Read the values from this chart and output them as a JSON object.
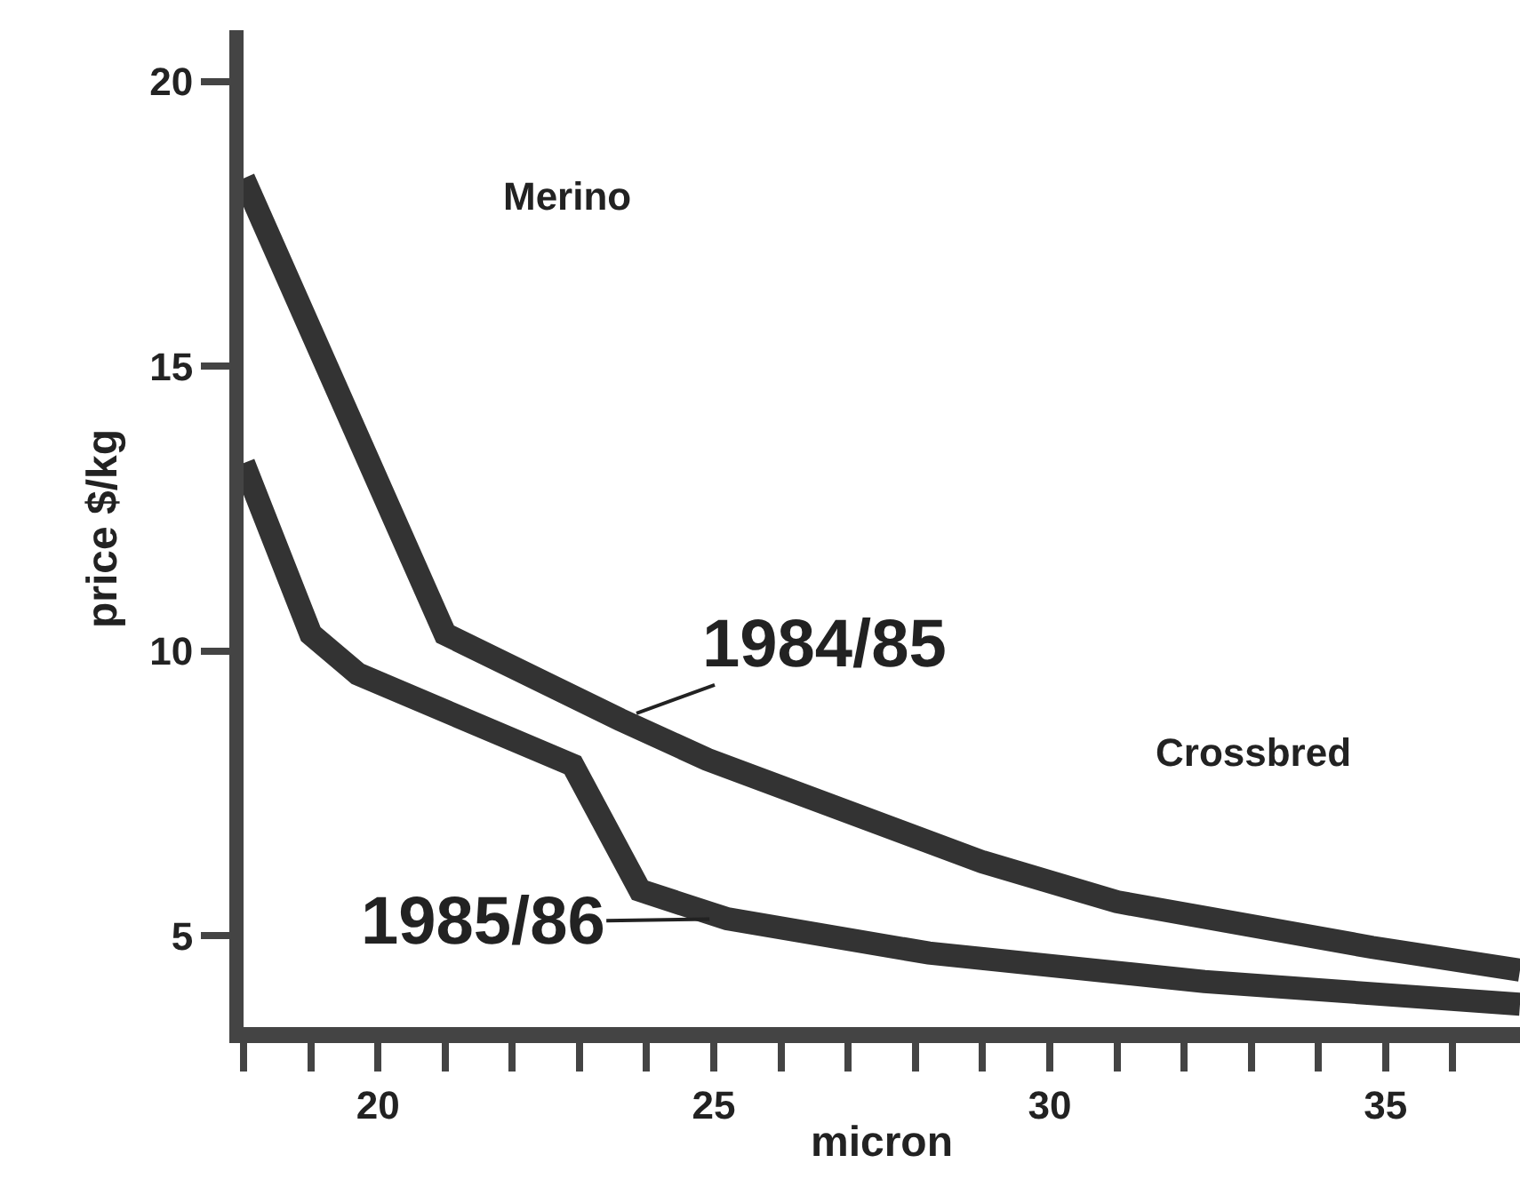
{
  "chart_data": {
    "type": "line",
    "xlabel": "micron",
    "ylabel": "price $/kg",
    "xlim": [
      18,
      37
    ],
    "ylim": [
      3.4,
      20.9
    ],
    "xticks": [
      {
        "value": 18,
        "label": null
      },
      {
        "value": 19,
        "label": null
      },
      20,
      {
        "value": 21,
        "label": null
      },
      {
        "value": 22,
        "label": null
      },
      {
        "value": 23,
        "label": null
      },
      {
        "value": 24,
        "label": null
      },
      25,
      {
        "value": 26,
        "label": null
      },
      {
        "value": 27,
        "label": null
      },
      {
        "value": 28,
        "label": null
      },
      {
        "value": 29,
        "label": null
      },
      30,
      {
        "value": 31,
        "label": null
      },
      {
        "value": 32,
        "label": null
      },
      {
        "value": 33,
        "label": null
      },
      {
        "value": 34,
        "label": null
      },
      35,
      {
        "value": 36,
        "label": null
      }
    ],
    "yticks": [
      5,
      10,
      15,
      20
    ],
    "legend": false,
    "marker": "none",
    "line_style": "solid",
    "series": [
      {
        "name": "1984/85",
        "color": "#333333",
        "x": [
          18,
          21.0,
          23.6,
          24.9,
          29.0,
          31.0,
          34.8,
          37
        ],
        "values": [
          18.3,
          10.3,
          8.8,
          8.1,
          6.3,
          5.6,
          4.8,
          4.4
        ]
      },
      {
        "name": "1985/86",
        "color": "#333333",
        "x": [
          18,
          19.0,
          19.7,
          22.9,
          23.9,
          25.2,
          28.2,
          32.3,
          37
        ],
        "values": [
          13.3,
          10.3,
          9.6,
          8.0,
          5.8,
          5.3,
          4.7,
          4.2,
          3.8
        ]
      }
    ],
    "annotations": [
      "Merino",
      "Crossbred"
    ]
  }
}
